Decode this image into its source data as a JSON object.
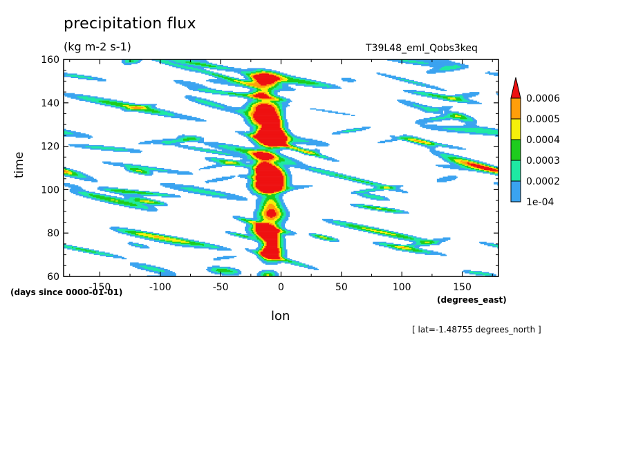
{
  "chart_data": {
    "type": "heatmap",
    "title": "precipitation flux",
    "units": "(kg m-2 s-1)",
    "run_name": "T39L48_eml_Qobs3keq",
    "xlabel": "lon",
    "x_units": "(degrees_east)",
    "ylabel": "time",
    "y_units": "(days since 0000-01-01)",
    "slice_note": "[ lat=-1.48755 degrees_north ]",
    "xlim": [
      -180,
      180
    ],
    "ylim": [
      60,
      160
    ],
    "x_ticks": [
      -150,
      -100,
      -50,
      0,
      50,
      100,
      150
    ],
    "x_tick_labels": [
      "-150",
      "-100",
      "-50",
      "0",
      "50",
      "100",
      "150"
    ],
    "y_ticks": [
      60,
      80,
      100,
      120,
      140,
      160
    ],
    "y_tick_labels": [
      "60",
      "80",
      "100",
      "120",
      "140",
      "160"
    ],
    "levels": [
      0.0001,
      0.0002,
      0.0003,
      0.0004,
      0.0005,
      0.0006
    ],
    "colorbar_labels": [
      "1e-04",
      "0.0002",
      "0.0003",
      "0.0004",
      "0.0005",
      "0.0006"
    ],
    "colors": {
      "below_first_level": "#ffffff",
      "band_1e4_2e4": "#3aa3f0",
      "band_2e4_3e4": "#1ee9a3",
      "band_3e4_4e4": "#1ecc1e",
      "band_4e4_5e4": "#f5f00a",
      "band_5e4_6e4": "#ff9e0a",
      "above_last_level": "#ee1111"
    },
    "features": {
      "stationary_convective_band_lon": -10,
      "westward_propagating_streaks": true,
      "eastward_propagating_streaks": true
    }
  }
}
